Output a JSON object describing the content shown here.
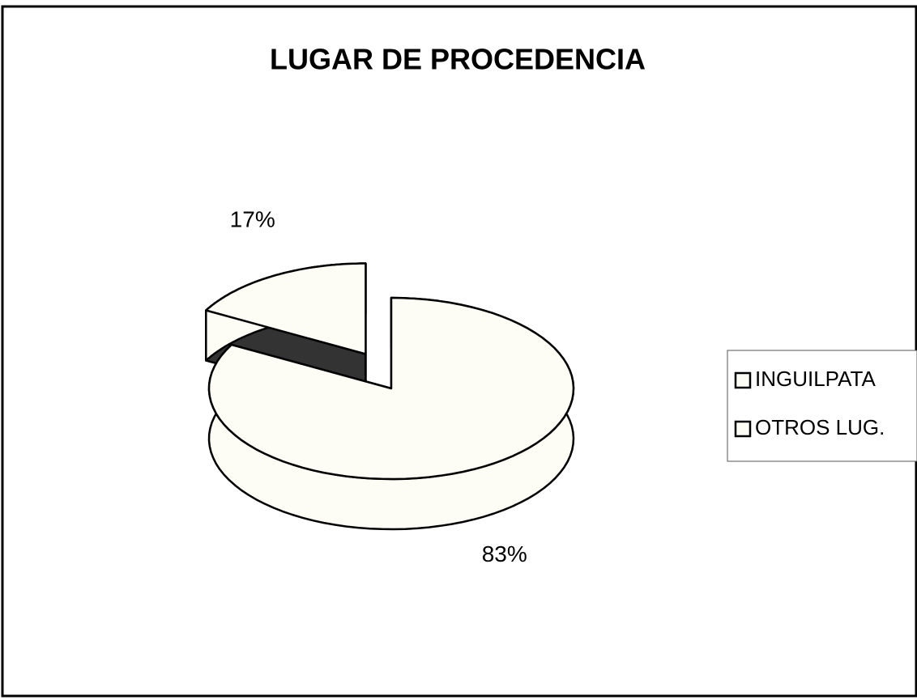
{
  "chart_data": {
    "type": "pie",
    "title": "LUGAR DE PROCEDENCIA",
    "categories": [
      "INGUILPATA",
      "OTROS LUG."
    ],
    "values": [
      83,
      17
    ],
    "value_labels": [
      "83%",
      "17%"
    ],
    "colors": [
      "#fdfdf6",
      "#fdfdf6"
    ],
    "legend": "right"
  }
}
